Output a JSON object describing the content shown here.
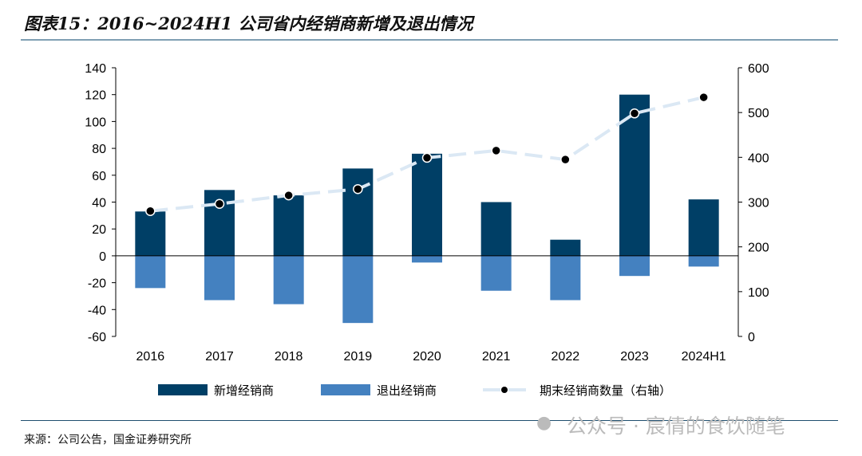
{
  "title": "图表15：2016~2024H1 公司省内经销商新增及退出情况",
  "source": "来源：公司公告，国金证券研究所",
  "watermark": "公众号 · 宸倩的食饮随笔",
  "chart_data": {
    "type": "bar",
    "categories": [
      "2016",
      "2017",
      "2018",
      "2019",
      "2020",
      "2021",
      "2022",
      "2023",
      "2024H1"
    ],
    "ylim": [
      -60,
      140
    ],
    "yticks": [
      -60,
      -40,
      -20,
      0,
      20,
      40,
      60,
      80,
      100,
      120,
      140
    ],
    "y2lim": [
      0,
      600
    ],
    "y2ticks": [
      0,
      100,
      200,
      300,
      400,
      500,
      600
    ],
    "series": [
      {
        "name": "新增经销商",
        "type": "bar",
        "axis": "left",
        "color": "#003f66",
        "values": [
          33,
          49,
          45,
          65,
          76,
          40,
          12,
          120,
          42
        ]
      },
      {
        "name": "退出经销商",
        "type": "bar",
        "axis": "left",
        "color": "#4481c0",
        "values": [
          -24,
          -33,
          -36,
          -50,
          -5,
          -26,
          -33,
          -15,
          -8
        ]
      },
      {
        "name": "期末经销商数量（右轴）",
        "type": "line",
        "axis": "right",
        "color": "#dbe8f4",
        "marker_color": "#000000",
        "dashed": true,
        "values": [
          280,
          296,
          315,
          329,
          399,
          415,
          395,
          498,
          534
        ]
      }
    ],
    "legend": "bottom"
  }
}
